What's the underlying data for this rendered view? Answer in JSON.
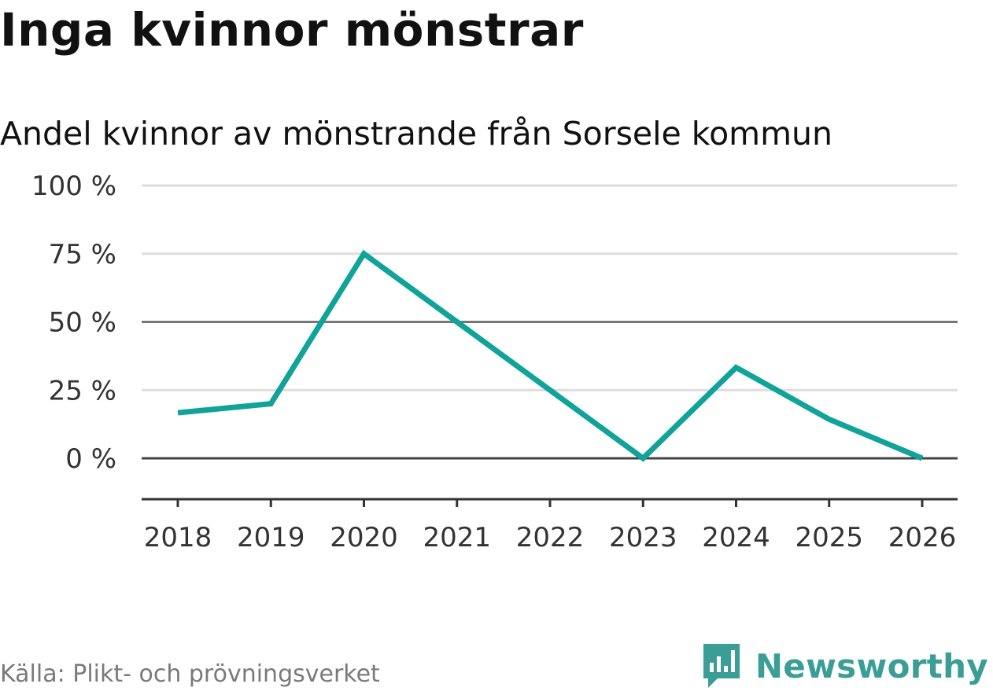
{
  "chart_data": {
    "type": "line",
    "title": "Inga kvinnor mönstrar",
    "subtitle": "Andel kvinnor av mönstrande från Sorsele kommun",
    "categories": [
      "2018",
      "2019",
      "2020",
      "2021",
      "2022",
      "2023",
      "2024",
      "2025",
      "2026"
    ],
    "series": [
      {
        "name": "Andel kvinnor",
        "values": [
          16.7,
          20,
          75,
          50,
          25,
          0,
          33.3,
          14.3,
          0
        ]
      }
    ],
    "ylim": [
      -15,
      100
    ],
    "yticks": [
      0,
      25,
      50,
      75,
      100
    ],
    "ytick_labels": [
      "0 %",
      "25 %",
      "50 %",
      "75 %",
      "100 %"
    ],
    "xlabel": "",
    "ylabel": "",
    "line_color": "#10a39a",
    "grid": true
  },
  "footer": {
    "source": "Källa: Plikt- och prövningsverket",
    "brand": "Newsworthy",
    "brand_color": "#3a9e96"
  }
}
